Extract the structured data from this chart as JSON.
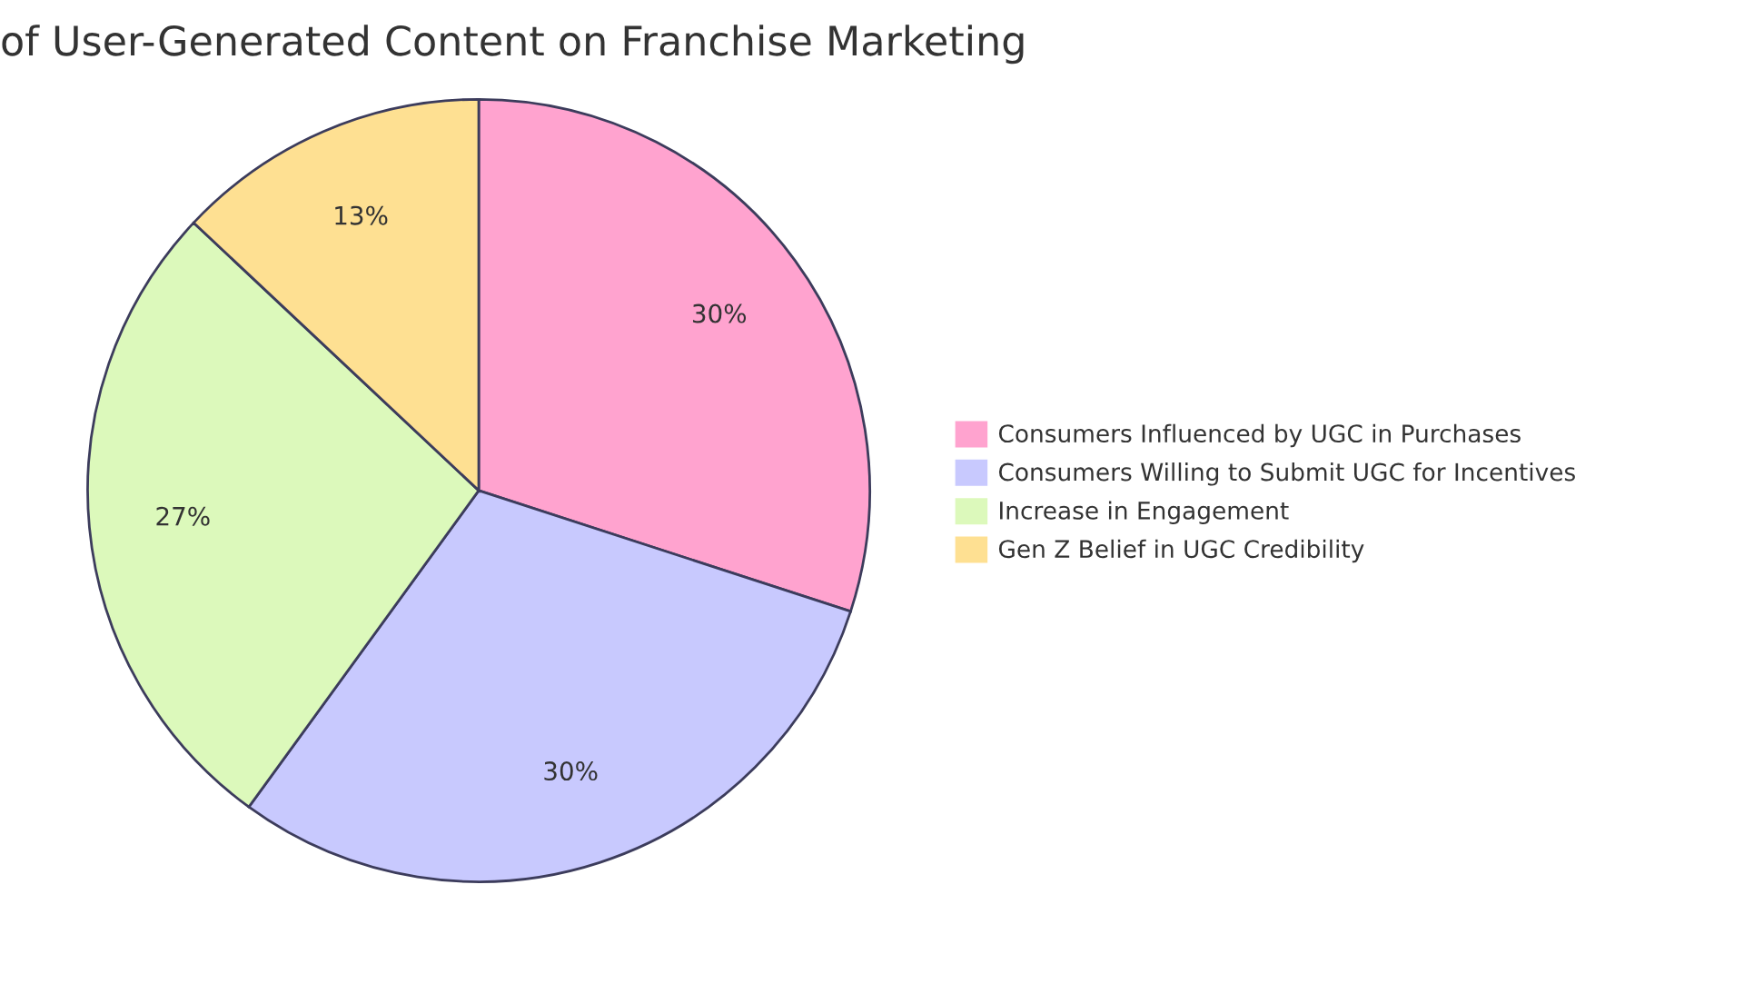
{
  "chart_data": {
    "type": "pie",
    "title": "of User-Generated Content on Franchise Marketing",
    "categories": [
      "Consumers Influenced by UGC in Purchases",
      "Consumers Willing to Submit UGC for Incentives",
      "Increase in Engagement",
      "Gen Z Belief in UGC Credibility"
    ],
    "values": [
      30,
      30,
      27,
      13
    ],
    "colors": [
      "#ffa3cf",
      "#c8c9fe",
      "#dcf9bb",
      "#fee092"
    ],
    "value_labels": [
      "30%",
      "30%",
      "27%",
      "13%"
    ],
    "legend": "right"
  }
}
